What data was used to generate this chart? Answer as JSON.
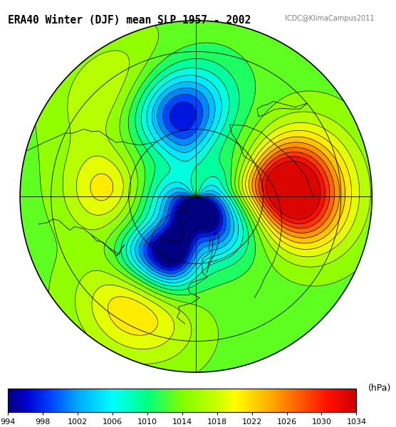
{
  "title_main": "ERA40 Winter (DJF) mean SLP 1957 - 2002",
  "title_sub": "ICDC@KlimaCampus2011",
  "colorbar_label": "(hPa)",
  "colorbar_ticks": [
    994,
    998,
    1002,
    1006,
    1010,
    1014,
    1018,
    1022,
    1026,
    1030,
    1034
  ],
  "contour_levels": [
    994,
    996,
    998,
    1000,
    1002,
    1004,
    1006,
    1008,
    1010,
    1012,
    1014,
    1016,
    1018,
    1020,
    1022,
    1024,
    1026,
    1028,
    1030,
    1032,
    1034
  ],
  "vmin": 994,
  "vmax": 1034,
  "background_color": "#ffffff",
  "fig_width": 5.56,
  "fig_height": 6.0,
  "dpi": 100,
  "colormap_colors": [
    [
      0.0,
      "#000080"
    ],
    [
      0.05,
      "#0000CD"
    ],
    [
      0.12,
      "#0040FF"
    ],
    [
      0.2,
      "#00AAFF"
    ],
    [
      0.3,
      "#00FFFF"
    ],
    [
      0.4,
      "#00FF80"
    ],
    [
      0.5,
      "#80FF00"
    ],
    [
      0.6,
      "#C8FF00"
    ],
    [
      0.65,
      "#FFFF00"
    ],
    [
      0.75,
      "#FFB000"
    ],
    [
      0.85,
      "#FF5000"
    ],
    [
      0.92,
      "#FF1000"
    ],
    [
      1.0,
      "#CC0000"
    ]
  ]
}
